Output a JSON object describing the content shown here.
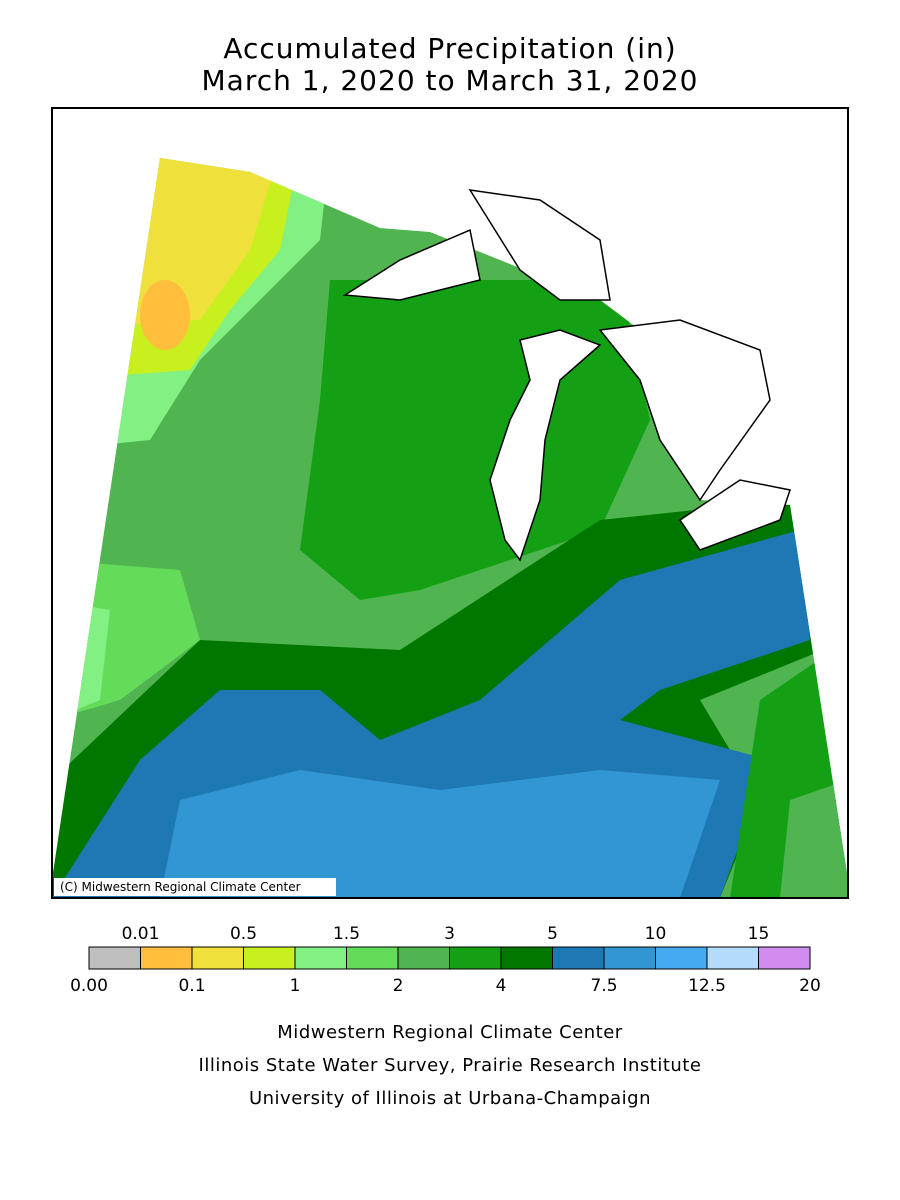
{
  "title": {
    "line1": "Accumulated Precipitation (in)",
    "line2": "March 1, 2020 to March 31, 2020"
  },
  "map": {
    "credit": "(C) Midwestern Regional Climate Center"
  },
  "legend": {
    "bounds": [
      "0.00",
      "0.01",
      "0.1",
      "0.5",
      "1",
      "1.5",
      "2",
      "3",
      "4",
      "5",
      "7.5",
      "10",
      "12.5",
      "15",
      "20"
    ],
    "colors": [
      "#bebebe",
      "#ffbe3c",
      "#f0e03c",
      "#c8f01e",
      "#82f082",
      "#64dc5a",
      "#50b450",
      "#14a014",
      "#007800",
      "#1e78b4",
      "#3296d2",
      "#46aaf0",
      "#b4dcfa",
      "#d28cf0"
    ]
  },
  "footer": {
    "line1": "Midwestern Regional Climate Center",
    "line2": "Illinois State Water Survey, Prairie Research Institute",
    "line3": "University of Illinois at Urbana-Champaign"
  }
}
